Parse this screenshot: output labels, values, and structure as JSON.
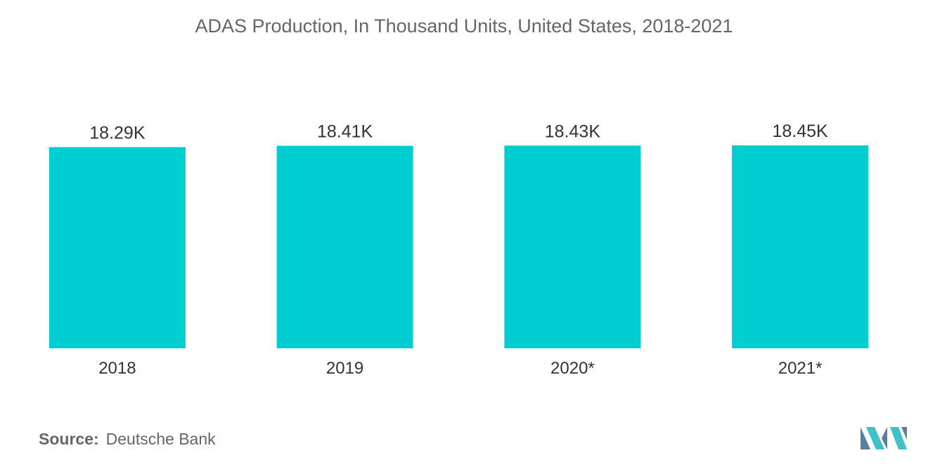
{
  "title": "ADAS Production, In Thousand Units, United States, 2018-2021",
  "source": {
    "label": "Source:",
    "value": "Deutsche Bank"
  },
  "colors": {
    "bar": "#00CED1",
    "text": "#333333",
    "muted": "#666666",
    "logo_dark": "#5b7fa0",
    "logo_light": "#3fc1c9"
  },
  "logo": {
    "icon": "mordor-intelligence-logo"
  },
  "chart_data": {
    "type": "bar",
    "title": "ADAS Production, In Thousand Units, United States, 2018-2021",
    "categories": [
      "2018",
      "2019",
      "2020*",
      "2021*"
    ],
    "values": [
      18.29,
      18.41,
      18.43,
      18.45
    ],
    "value_labels": [
      "18.29K",
      "18.41K",
      "18.43K",
      "18.45K"
    ],
    "xlabel": "",
    "ylabel": "",
    "ylim": [
      0,
      18.45
    ],
    "grid": false,
    "legend": "none"
  }
}
